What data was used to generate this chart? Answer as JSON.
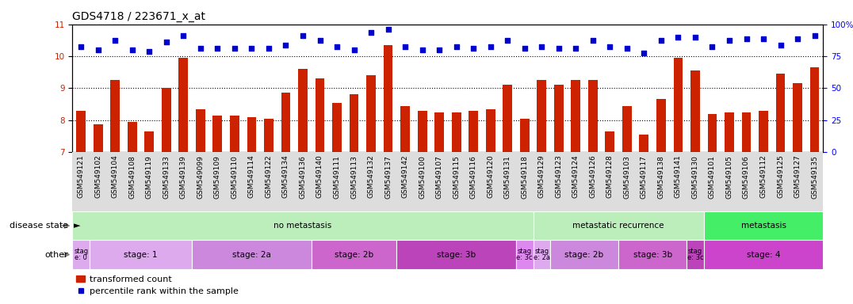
{
  "title": "GDS4718 / 223671_x_at",
  "samples": [
    "GSM549121",
    "GSM549102",
    "GSM549104",
    "GSM549108",
    "GSM549119",
    "GSM549133",
    "GSM549139",
    "GSM549099",
    "GSM549109",
    "GSM549110",
    "GSM549114",
    "GSM549122",
    "GSM549134",
    "GSM549136",
    "GSM549140",
    "GSM549111",
    "GSM549113",
    "GSM549132",
    "GSM549137",
    "GSM549142",
    "GSM549100",
    "GSM549107",
    "GSM549115",
    "GSM549116",
    "GSM549120",
    "GSM549131",
    "GSM549118",
    "GSM549129",
    "GSM549123",
    "GSM549124",
    "GSM549126",
    "GSM549128",
    "GSM549103",
    "GSM549117",
    "GSM549138",
    "GSM549141",
    "GSM549130",
    "GSM549101",
    "GSM549105",
    "GSM549106",
    "GSM549112",
    "GSM549125",
    "GSM549127",
    "GSM549135"
  ],
  "bar_values": [
    8.28,
    7.88,
    9.25,
    7.95,
    7.65,
    9.0,
    9.95,
    8.35,
    8.15,
    8.15,
    8.1,
    8.05,
    8.85,
    9.6,
    9.3,
    8.55,
    8.8,
    9.4,
    10.35,
    8.45,
    8.3,
    8.25,
    8.25,
    8.3,
    8.35,
    9.1,
    8.05,
    9.25,
    9.1,
    9.25,
    9.25,
    7.65,
    8.45,
    7.55,
    8.65,
    9.95,
    9.55,
    8.2,
    8.25,
    8.25,
    8.3,
    9.45,
    9.15,
    9.65
  ],
  "scatter_values": [
    10.3,
    10.2,
    10.5,
    10.2,
    10.15,
    10.45,
    10.65,
    10.25,
    10.25,
    10.25,
    10.25,
    10.25,
    10.35,
    10.65,
    10.5,
    10.3,
    10.2,
    10.75,
    10.85,
    10.3,
    10.2,
    10.2,
    10.3,
    10.25,
    10.3,
    10.5,
    10.25,
    10.3,
    10.25,
    10.25,
    10.5,
    10.3,
    10.25,
    10.1,
    10.5,
    10.6,
    10.6,
    10.3,
    10.5,
    10.55,
    10.55,
    10.35,
    10.55,
    10.65
  ],
  "ylim": [
    7,
    11
  ],
  "yticks": [
    7,
    8,
    9,
    10,
    11
  ],
  "right_yticks": [
    0,
    25,
    50,
    75,
    100
  ],
  "bar_color": "#CC2200",
  "scatter_color": "#0000CC",
  "disease_bands": [
    {
      "label": "no metastasis",
      "start": 0,
      "end": 27,
      "color": "#BBEEBB"
    },
    {
      "label": "metastatic recurrence",
      "start": 27,
      "end": 37,
      "color": "#BBEEBB"
    },
    {
      "label": "metastasis",
      "start": 37,
      "end": 44,
      "color": "#44EE66"
    }
  ],
  "other_bands": [
    {
      "label": "stag\ne: 0",
      "start": 0,
      "end": 1,
      "color": "#DDAAEE"
    },
    {
      "label": "stage: 1",
      "start": 1,
      "end": 7,
      "color": "#DDAAEE"
    },
    {
      "label": "stage: 2a",
      "start": 7,
      "end": 14,
      "color": "#CC88DD"
    },
    {
      "label": "stage: 2b",
      "start": 14,
      "end": 19,
      "color": "#CC66CC"
    },
    {
      "label": "stage: 3b",
      "start": 19,
      "end": 26,
      "color": "#BB44BB"
    },
    {
      "label": "stag\ne: 3c",
      "start": 26,
      "end": 27,
      "color": "#DD88EE"
    },
    {
      "label": "stag\ne: 2a",
      "start": 27,
      "end": 28,
      "color": "#DDAAEE"
    },
    {
      "label": "stage: 2b",
      "start": 28,
      "end": 32,
      "color": "#CC88DD"
    },
    {
      "label": "stage: 3b",
      "start": 32,
      "end": 36,
      "color": "#CC66CC"
    },
    {
      "label": "stag\ne: 3c",
      "start": 36,
      "end": 37,
      "color": "#BB44BB"
    },
    {
      "label": "stage: 4",
      "start": 37,
      "end": 44,
      "color": "#CC44CC"
    }
  ],
  "disease_state_row_label": "disease state",
  "other_row_label": "other",
  "legend_bar_label": "transformed count",
  "legend_scatter_label": "percentile rank within the sample",
  "title_fontsize": 10,
  "tick_fontsize": 6.5,
  "label_fontsize": 8,
  "annot_fontsize": 7.5
}
